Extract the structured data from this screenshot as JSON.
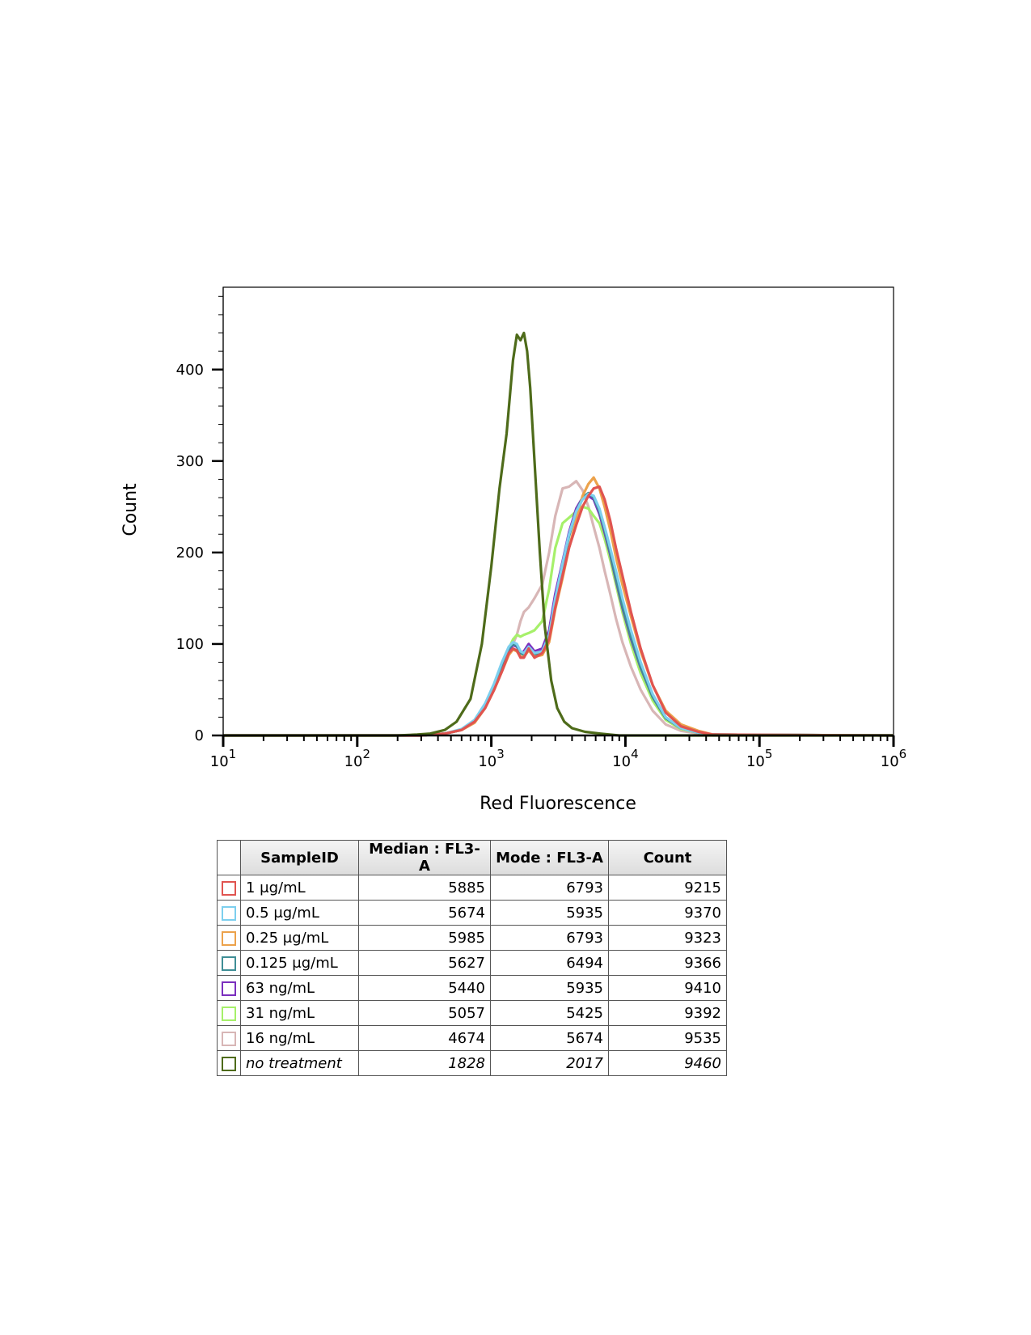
{
  "chart_data": {
    "type": "line",
    "xlabel": "Red Fluorescence",
    "ylabel": "Count",
    "xscale": "log",
    "xlim": [
      10,
      1000000
    ],
    "ylim": [
      0,
      490
    ],
    "x_ticks": [
      {
        "base": "10",
        "exp": "1",
        "value": 10
      },
      {
        "base": "10",
        "exp": "2",
        "value": 100
      },
      {
        "base": "10",
        "exp": "3",
        "value": 1000
      },
      {
        "base": "10",
        "exp": "4",
        "value": 10000
      },
      {
        "base": "10",
        "exp": "5",
        "value": 100000
      },
      {
        "base": "10",
        "exp": "6",
        "value": 1000000
      }
    ],
    "y_ticks": [
      {
        "label": "0",
        "value": 0
      },
      {
        "label": "100",
        "value": 100
      },
      {
        "label": "200",
        "value": 200
      },
      {
        "label": "300",
        "value": 300
      },
      {
        "label": "400",
        "value": 400
      }
    ],
    "grid": false,
    "series": [
      {
        "name": "no treatment",
        "color": "#4e6b1a",
        "x": [
          10,
          200,
          280,
          350,
          450,
          550,
          700,
          850,
          1000,
          1150,
          1300,
          1450,
          1550,
          1650,
          1750,
          1850,
          1950,
          2100,
          2300,
          2500,
          2800,
          3100,
          3500,
          4000,
          5000,
          6500,
          9000,
          1000000
        ],
        "y": [
          0,
          0,
          1,
          2,
          6,
          15,
          40,
          100,
          185,
          270,
          330,
          410,
          438,
          432,
          440,
          420,
          380,
          300,
          200,
          120,
          60,
          30,
          15,
          8,
          4,
          2,
          0,
          0
        ]
      },
      {
        "name": "1 μg/mL",
        "color": "#e05450",
        "x": [
          10,
          300,
          450,
          600,
          750,
          900,
          1050,
          1200,
          1350,
          1450,
          1550,
          1650,
          1750,
          1900,
          2100,
          2400,
          2700,
          3000,
          3400,
          3800,
          4300,
          4800,
          5300,
          5800,
          6400,
          7000,
          7700,
          8500,
          9500,
          11000,
          13000,
          16000,
          20000,
          26000,
          35000,
          45000,
          1000000
        ],
        "y": [
          0,
          0,
          2,
          6,
          15,
          30,
          50,
          70,
          90,
          95,
          93,
          85,
          85,
          95,
          85,
          90,
          105,
          140,
          175,
          205,
          230,
          250,
          262,
          270,
          272,
          258,
          235,
          205,
          175,
          135,
          95,
          55,
          25,
          10,
          4,
          1,
          0
        ]
      },
      {
        "name": "0.5 μg/mL",
        "color": "#7dcfee",
        "x": [
          10,
          300,
          450,
          600,
          750,
          900,
          1050,
          1200,
          1350,
          1450,
          1550,
          1650,
          1750,
          1900,
          2100,
          2400,
          2700,
          3000,
          3400,
          3800,
          4300,
          4800,
          5300,
          5800,
          6400,
          7000,
          7700,
          8500,
          9500,
          11000,
          13000,
          16000,
          20000,
          26000,
          35000,
          45000,
          1000000
        ],
        "y": [
          0,
          0,
          2,
          7,
          17,
          35,
          57,
          80,
          97,
          102,
          100,
          92,
          90,
          97,
          90,
          92,
          110,
          150,
          188,
          220,
          245,
          258,
          264,
          262,
          248,
          228,
          205,
          180,
          150,
          115,
          80,
          45,
          20,
          8,
          3,
          1,
          0
        ]
      },
      {
        "name": "0.25 μg/mL",
        "color": "#eca24b",
        "x": [
          10,
          300,
          450,
          600,
          750,
          900,
          1050,
          1200,
          1350,
          1450,
          1550,
          1650,
          1750,
          1900,
          2100,
          2400,
          2700,
          3000,
          3400,
          3800,
          4300,
          4800,
          5300,
          5800,
          6400,
          7000,
          7700,
          8500,
          9500,
          11000,
          13000,
          16000,
          20000,
          26000,
          35000,
          45000,
          1000000
        ],
        "y": [
          0,
          0,
          2,
          6,
          14,
          30,
          50,
          70,
          88,
          94,
          92,
          86,
          86,
          93,
          86,
          88,
          102,
          138,
          172,
          205,
          235,
          262,
          275,
          282,
          270,
          250,
          225,
          195,
          165,
          130,
          92,
          55,
          27,
          12,
          5,
          1,
          0
        ]
      },
      {
        "name": "0.125 μg/mL",
        "color": "#3f8e96",
        "x": [
          10,
          300,
          450,
          600,
          750,
          900,
          1050,
          1200,
          1350,
          1450,
          1550,
          1650,
          1750,
          1900,
          2100,
          2400,
          2700,
          3000,
          3400,
          3800,
          4300,
          4800,
          5300,
          5800,
          6400,
          7000,
          7700,
          8500,
          9500,
          11000,
          13000,
          16000,
          20000,
          26000,
          35000,
          45000,
          1000000
        ],
        "y": [
          0,
          0,
          2,
          6,
          16,
          33,
          55,
          78,
          95,
          100,
          98,
          90,
          88,
          95,
          88,
          90,
          108,
          148,
          185,
          218,
          245,
          260,
          265,
          260,
          245,
          225,
          200,
          172,
          142,
          108,
          75,
          42,
          19,
          8,
          3,
          1,
          0
        ]
      },
      {
        "name": "63 ng/mL",
        "color": "#7b2fbe",
        "x": [
          10,
          300,
          450,
          600,
          750,
          900,
          1050,
          1200,
          1350,
          1450,
          1550,
          1650,
          1750,
          1900,
          2100,
          2400,
          2700,
          3000,
          3400,
          3800,
          4300,
          4800,
          5300,
          5800,
          6400,
          7000,
          7700,
          8500,
          9500,
          11000,
          13000,
          16000,
          20000,
          26000,
          35000,
          45000,
          1000000
        ],
        "y": [
          0,
          0,
          2,
          6,
          15,
          32,
          53,
          75,
          93,
          99,
          97,
          90,
          92,
          100,
          92,
          95,
          115,
          155,
          190,
          222,
          248,
          260,
          262,
          258,
          242,
          222,
          198,
          170,
          140,
          106,
          74,
          42,
          19,
          8,
          3,
          1,
          0
        ]
      },
      {
        "name": "31 ng/mL",
        "color": "#a6f06a",
        "x": [
          10,
          300,
          450,
          600,
          750,
          900,
          1050,
          1200,
          1350,
          1450,
          1550,
          1650,
          1750,
          1900,
          2100,
          2400,
          2700,
          3000,
          3400,
          3800,
          4300,
          4800,
          5300,
          5800,
          6400,
          7000,
          7700,
          8500,
          9500,
          11000,
          13000,
          16000,
          20000,
          26000,
          35000,
          45000,
          1000000
        ],
        "y": [
          0,
          0,
          2,
          6,
          15,
          32,
          55,
          78,
          95,
          105,
          110,
          108,
          110,
          112,
          115,
          125,
          160,
          205,
          232,
          238,
          245,
          250,
          248,
          240,
          232,
          215,
          192,
          165,
          135,
          100,
          68,
          38,
          17,
          7,
          3,
          1,
          0
        ]
      },
      {
        "name": "16 ng/mL",
        "color": "#d8b6b6",
        "x": [
          10,
          300,
          450,
          600,
          750,
          900,
          1050,
          1200,
          1350,
          1450,
          1550,
          1650,
          1750,
          1900,
          2100,
          2400,
          2700,
          3000,
          3400,
          3800,
          4300,
          4800,
          5300,
          5800,
          6400,
          7000,
          7700,
          8500,
          9500,
          11000,
          13000,
          16000,
          20000,
          26000,
          35000,
          45000,
          1000000
        ],
        "y": [
          0,
          0,
          2,
          6,
          14,
          30,
          52,
          75,
          92,
          100,
          110,
          125,
          135,
          140,
          150,
          165,
          200,
          240,
          270,
          272,
          278,
          268,
          250,
          228,
          205,
          180,
          155,
          128,
          102,
          75,
          50,
          27,
          12,
          5,
          2,
          0,
          0
        ]
      }
    ]
  },
  "legend_table": {
    "headers": {
      "sample": "SampleID",
      "median": "Median : FL3-A",
      "mode": "Mode : FL3-A",
      "count": "Count"
    },
    "rows": [
      {
        "label": "1 μg/mL",
        "median": "5885",
        "mode": "6793",
        "count": "9215",
        "color": "#e05450"
      },
      {
        "label": "0.5 μg/mL",
        "median": "5674",
        "mode": "5935",
        "count": "9370",
        "color": "#7dcfee"
      },
      {
        "label": "0.25 μg/mL",
        "median": "5985",
        "mode": "6793",
        "count": "9323",
        "color": "#eca24b"
      },
      {
        "label": "0.125 μg/mL",
        "median": "5627",
        "mode": "6494",
        "count": "9366",
        "color": "#3f8e96"
      },
      {
        "label": "63 ng/mL",
        "median": "5440",
        "mode": "5935",
        "count": "9410",
        "color": "#7b2fbe"
      },
      {
        "label": "31 ng/mL",
        "median": "5057",
        "mode": "5425",
        "count": "9392",
        "color": "#a6f06a"
      },
      {
        "label": "16 ng/mL",
        "median": "4674",
        "mode": "5674",
        "count": "9535",
        "color": "#d8b6b6"
      },
      {
        "label": "no treatment",
        "median": "1828",
        "mode": "2017",
        "count": "9460",
        "color": "#4e6b1a"
      }
    ]
  }
}
